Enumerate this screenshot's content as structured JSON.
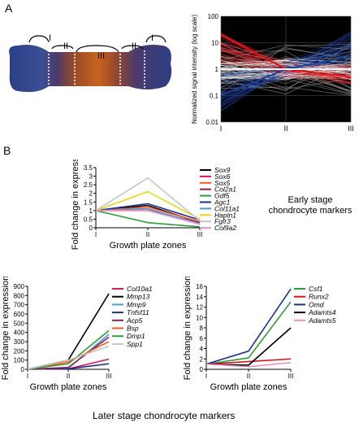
{
  "panel_a": {
    "letter": "A",
    "bone_zone_labels": [
      "I",
      "II",
      "III",
      "II",
      "I"
    ],
    "colors": {
      "red": "#d8141a",
      "blue": "#1c3f9c",
      "light": "#f3f3f3",
      "gray": "#999999"
    }
  },
  "panel_b": {
    "letter": "B",
    "later_stage_title": "Later stage chondrocyte markers"
  },
  "chart_data": [
    {
      "type": "line",
      "ylabel": "Normalized signal intensity (log scale)",
      "y_scale": "log",
      "ylim": [
        0.01,
        100
      ],
      "ytick_labels": [
        "0.01",
        "0.1",
        "1",
        "10",
        "100"
      ],
      "yticks": [
        0.01,
        0.1,
        1,
        10,
        100
      ],
      "categories": [
        "I",
        "II",
        "III"
      ],
      "background": "#000000",
      "grid": true,
      "series_colors": [
        "#d8141a",
        "#1c3f9c",
        "#f3f3f3",
        "#999999"
      ],
      "summary_series": [
        {
          "color": "#d8141a",
          "values": [
            20,
            1,
            0.5
          ]
        },
        {
          "color": "#1c3f9c",
          "values": [
            0.1,
            1,
            3
          ]
        },
        {
          "color": "#f3f3f3",
          "values": [
            1,
            1,
            1
          ]
        }
      ]
    },
    {
      "type": "line",
      "ylabel": "Fold change in expression",
      "xlabel": "Growth plate zones",
      "categories": [
        "I",
        "II",
        "III"
      ],
      "ylim": [
        0,
        3.5
      ],
      "yticks": [
        0,
        0.5,
        1,
        1.5,
        2,
        2.5,
        3,
        3.5
      ],
      "ytick_labels": [
        "0",
        "0.5",
        "1",
        "1.5",
        "2",
        "2.5",
        "3",
        "3.5"
      ],
      "side_label": [
        "Early stage",
        "chondrocyte markers"
      ],
      "series": [
        {
          "name": "Sox9",
          "color": "#000000",
          "values": [
            1,
            1.3,
            0.3
          ]
        },
        {
          "name": "Sox6",
          "color": "#d81b60",
          "values": [
            1,
            1.1,
            0.2
          ]
        },
        {
          "name": "Sox5",
          "color": "#ff5722",
          "values": [
            1,
            1.2,
            0.35
          ]
        },
        {
          "name": "Col2a1",
          "color": "#8e1e4a",
          "values": [
            1,
            1.0,
            0.3
          ]
        },
        {
          "name": "Gdf5",
          "color": "#2e9e3a",
          "values": [
            1,
            0.3,
            0.05
          ]
        },
        {
          "name": "Agc1",
          "color": "#1f2f8f",
          "values": [
            1,
            1.4,
            0.45
          ]
        },
        {
          "name": "Col11a1",
          "color": "#3ea0d8",
          "values": [
            1,
            1.1,
            0.25
          ]
        },
        {
          "name": "Hapln1",
          "color": "#f1d40f",
          "values": [
            1,
            2.1,
            0.5
          ]
        },
        {
          "name": "Fgfr3",
          "color": "#c4c4c4",
          "values": [
            1,
            2.9,
            0.4
          ]
        },
        {
          "name": "Col9a2",
          "color": "#f090c0",
          "values": [
            1,
            1.0,
            0.2
          ]
        }
      ]
    },
    {
      "type": "line",
      "ylabel": "Fold change in expression",
      "xlabel": "Growth plate zones",
      "categories": [
        "I",
        "II",
        "III"
      ],
      "ylim": [
        0,
        900
      ],
      "yticks": [
        0,
        100,
        200,
        300,
        400,
        500,
        600,
        700,
        800,
        900
      ],
      "ytick_labels": [
        "0",
        "100",
        "200",
        "300",
        "400",
        "500",
        "600",
        "700",
        "800",
        "900"
      ],
      "series": [
        {
          "name": "Col10a1",
          "color": "#d81b60",
          "values": [
            1,
            5,
            110
          ]
        },
        {
          "name": "Mmp13",
          "color": "#000000",
          "values": [
            1,
            100,
            820
          ]
        },
        {
          "name": "Mmp9",
          "color": "#3ea0d8",
          "values": [
            1,
            10,
            380
          ]
        },
        {
          "name": "Tnfsf11",
          "color": "#1f2f8f",
          "values": [
            1,
            5,
            60
          ]
        },
        {
          "name": "Acp5",
          "color": "#8e1e4a",
          "values": [
            1,
            20,
            350
          ]
        },
        {
          "name": "Bsp",
          "color": "#ff5722",
          "values": [
            1,
            80,
            300
          ]
        },
        {
          "name": "Dmp1",
          "color": "#2e9e3a",
          "values": [
            1,
            60,
            420
          ]
        },
        {
          "name": "Spp1",
          "color": "#c4c4c4",
          "values": [
            1,
            100,
            250
          ]
        }
      ]
    },
    {
      "type": "line",
      "ylabel": "Fold change in expression",
      "xlabel": "Growth plate zones",
      "categories": [
        "I",
        "II",
        "III"
      ],
      "ylim": [
        0,
        16
      ],
      "yticks": [
        0,
        2,
        4,
        6,
        8,
        10,
        12,
        14,
        16
      ],
      "ytick_labels": [
        "0",
        "2",
        "4",
        "6",
        "8",
        "10",
        "12",
        "14",
        "16"
      ],
      "series": [
        {
          "name": "Csf1",
          "color": "#2e9e3a",
          "values": [
            1,
            2.2,
            13
          ]
        },
        {
          "name": "Runx2",
          "color": "#d8141a",
          "values": [
            1,
            1.5,
            2
          ]
        },
        {
          "name": "Omd",
          "color": "#1f2f8f",
          "values": [
            1,
            3.5,
            15.5
          ]
        },
        {
          "name": "Adamts4",
          "color": "#000000",
          "values": [
            1,
            0.8,
            8
          ]
        },
        {
          "name": "Adamts5",
          "color": "#f090c0",
          "values": [
            1,
            0.5,
            1.3
          ]
        }
      ]
    }
  ]
}
